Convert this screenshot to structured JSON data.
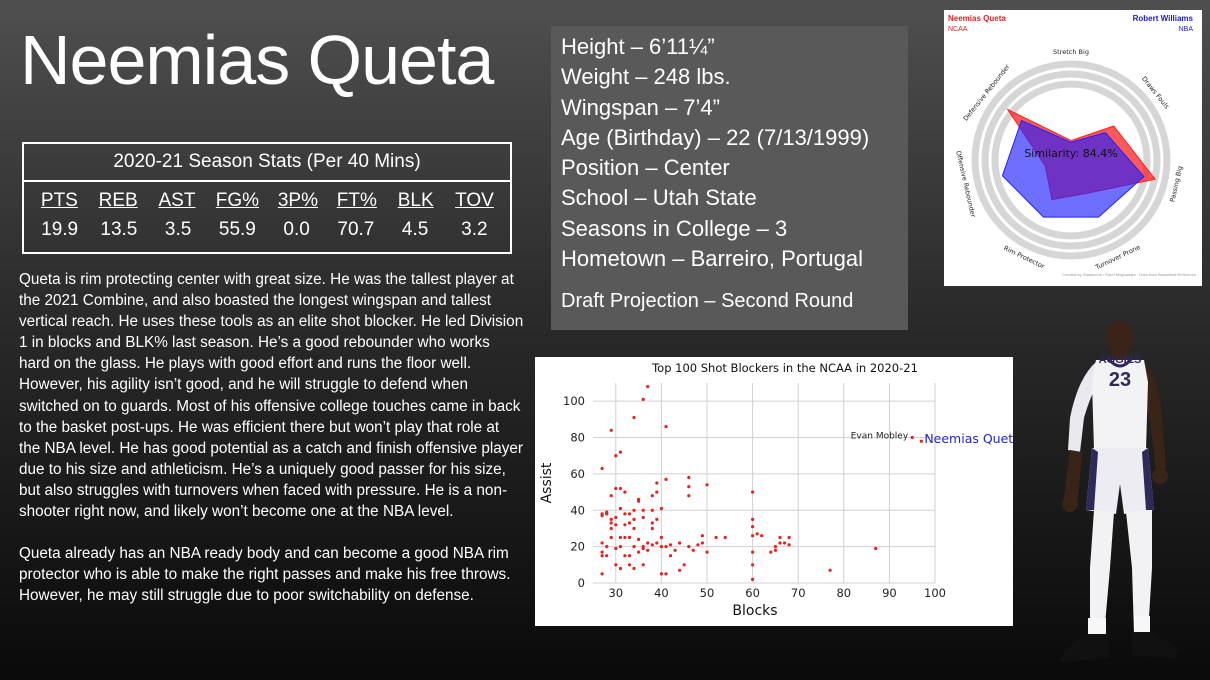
{
  "title": "Neemias Queta",
  "stats": {
    "heading": "2020-21 Season Stats (Per 40 Mins)",
    "columns": [
      "PTS",
      "REB",
      "AST",
      "FG%",
      "3P%",
      "FT%",
      "BLK",
      "TOV"
    ],
    "values": [
      "19.9",
      "13.5",
      "3.5",
      "55.9",
      "0.0",
      "70.7",
      "4.5",
      "3.2"
    ]
  },
  "description": {
    "p1": "Queta is rim protecting center with great size. He was the tallest player at the 2021 Combine, and also boasted the longest wingspan and tallest vertical reach. He uses these tools as an elite shot blocker. He led Division 1 in blocks and BLK% last season. He’s a good rebounder who works hard on the glass. He plays with good effort and runs the floor well. However, his agility isn’t good, and he will struggle to defend when switched on to guards. Most of his offensive college touches came in back to the basket post-ups. He was efficient there but won’t play that role at the NBA level. He has good potential as a catch and finish offensive player due to his size and athleticism. He’s a uniquely good passer for his size, but also struggles with turnovers when faced with pressure. He is a non-shooter right now, and likely won’t become one at the NBA level.",
    "p2": "Queta already has an NBA ready body and can become a good NBA rim protector who is able to make the right passes and make his free throws. However, he may still struggle due to poor switchability on defense."
  },
  "info": {
    "height": "Height – 6’11¼”",
    "weight": "Weight – 248 lbs.",
    "wingspan": "Wingspan – 7’4”",
    "age": "Age (Birthday) – 22 (7/13/1999)",
    "position": "Position – Center",
    "school": "School – Utah State",
    "seasons": "Seasons in College – 3",
    "hometown": "Hometown – Barreiro, Portugal",
    "projection": "Draft Projection – Second Round"
  },
  "radar": {
    "player_left": "Neemias Queta",
    "league_left": "NCAA",
    "player_right": "Robert Williams",
    "league_right": "NBA",
    "similarity": "Similarity: 84.4%",
    "axes": [
      "Stretch Big",
      "Draws Fouls",
      "Passing Big",
      "Turnover Prone",
      "Rim Protector",
      "Offensive Rebounder",
      "Defensive Rebounder"
    ],
    "values_left": [
      0.22,
      0.62,
      0.98,
      0.42,
      0.5,
      0.3,
      0.92
    ],
    "values_right": [
      0.2,
      0.5,
      0.85,
      0.72,
      0.72,
      0.8,
      0.72
    ],
    "color_left": "#ff2020",
    "color_right": "#2020ff",
    "credit": "Created by Statsbomb / Rami Moghadam · Data from Basketball Reference"
  },
  "chart_data": {
    "type": "scatter",
    "title": "Top 100 Shot Blockers in the NCAA in 2020-21",
    "xlabel": "Blocks",
    "ylabel": "Assist",
    "xlim": [
      25,
      100
    ],
    "ylim": [
      0,
      110
    ],
    "xticks": [
      30,
      40,
      50,
      60,
      70,
      80,
      90,
      100
    ],
    "yticks": [
      0,
      20,
      40,
      60,
      80,
      100
    ],
    "grid": true,
    "color": "#e8201e",
    "highlight_color": "#2222cc",
    "annotations": [
      {
        "text": "Evan Mobley",
        "x": 95,
        "y": 80
      },
      {
        "text": "Neemias Queta",
        "x": 97,
        "y": 78,
        "highlight": true
      }
    ],
    "points": [
      [
        27,
        5
      ],
      [
        27,
        15
      ],
      [
        27,
        17
      ],
      [
        27,
        22
      ],
      [
        27,
        37
      ],
      [
        27,
        38
      ],
      [
        27,
        63
      ],
      [
        28,
        15
      ],
      [
        28,
        20
      ],
      [
        28,
        38
      ],
      [
        28,
        39
      ],
      [
        28,
        38
      ],
      [
        29,
        25
      ],
      [
        29,
        30
      ],
      [
        29,
        33
      ],
      [
        29,
        35
      ],
      [
        29,
        48
      ],
      [
        29,
        84
      ],
      [
        30,
        10
      ],
      [
        30,
        19
      ],
      [
        30,
        32
      ],
      [
        30,
        36
      ],
      [
        30,
        52
      ],
      [
        30,
        70
      ],
      [
        31,
        8
      ],
      [
        31,
        20
      ],
      [
        31,
        25
      ],
      [
        31,
        41
      ],
      [
        31,
        52
      ],
      [
        31,
        72
      ],
      [
        32,
        15
      ],
      [
        32,
        25
      ],
      [
        32,
        32
      ],
      [
        32,
        38
      ],
      [
        32,
        50
      ],
      [
        33,
        10
      ],
      [
        33,
        15
      ],
      [
        33,
        25
      ],
      [
        33,
        33
      ],
      [
        33,
        38
      ],
      [
        34,
        8
      ],
      [
        34,
        20
      ],
      [
        34,
        30
      ],
      [
        34,
        35
      ],
      [
        34,
        40
      ],
      [
        34,
        91
      ],
      [
        35,
        17
      ],
      [
        35,
        24
      ],
      [
        35,
        45
      ],
      [
        35,
        46
      ],
      [
        36,
        10
      ],
      [
        36,
        19
      ],
      [
        36,
        20
      ],
      [
        36,
        36
      ],
      [
        36,
        40
      ],
      [
        36,
        101
      ],
      [
        37,
        18
      ],
      [
        37,
        22
      ],
      [
        37,
        108
      ],
      [
        38,
        21
      ],
      [
        38,
        30
      ],
      [
        38,
        33
      ],
      [
        38,
        40
      ],
      [
        38,
        48
      ],
      [
        39,
        22
      ],
      [
        39,
        35
      ],
      [
        39,
        50
      ],
      [
        39,
        55
      ],
      [
        40,
        5
      ],
      [
        40,
        20
      ],
      [
        40,
        25
      ],
      [
        40,
        41
      ],
      [
        41,
        5
      ],
      [
        41,
        20
      ],
      [
        41,
        57
      ],
      [
        41,
        86
      ],
      [
        42,
        15
      ],
      [
        42,
        21
      ],
      [
        43,
        18
      ],
      [
        44,
        7
      ],
      [
        44,
        22
      ],
      [
        45,
        10
      ],
      [
        46,
        20
      ],
      [
        46,
        48
      ],
      [
        46,
        53
      ],
      [
        46,
        58
      ],
      [
        47,
        18
      ],
      [
        48,
        21
      ],
      [
        49,
        22
      ],
      [
        49,
        26
      ],
      [
        50,
        17
      ],
      [
        50,
        54
      ],
      [
        52,
        25
      ],
      [
        54,
        25
      ],
      [
        60,
        2
      ],
      [
        60,
        10
      ],
      [
        60,
        17
      ],
      [
        60,
        26
      ],
      [
        60,
        31
      ],
      [
        60,
        35
      ],
      [
        60,
        50
      ],
      [
        61,
        27
      ],
      [
        62,
        26
      ],
      [
        64,
        17
      ],
      [
        65,
        18
      ],
      [
        65,
        20
      ],
      [
        66,
        22
      ],
      [
        66,
        25
      ],
      [
        67,
        22
      ],
      [
        68,
        21
      ],
      [
        68,
        25
      ],
      [
        77,
        7
      ],
      [
        87,
        19
      ],
      [
        95,
        80
      ],
      [
        97,
        78
      ]
    ]
  },
  "photo": {
    "jersey_text": "AGGIES",
    "jersey_number": "23"
  }
}
